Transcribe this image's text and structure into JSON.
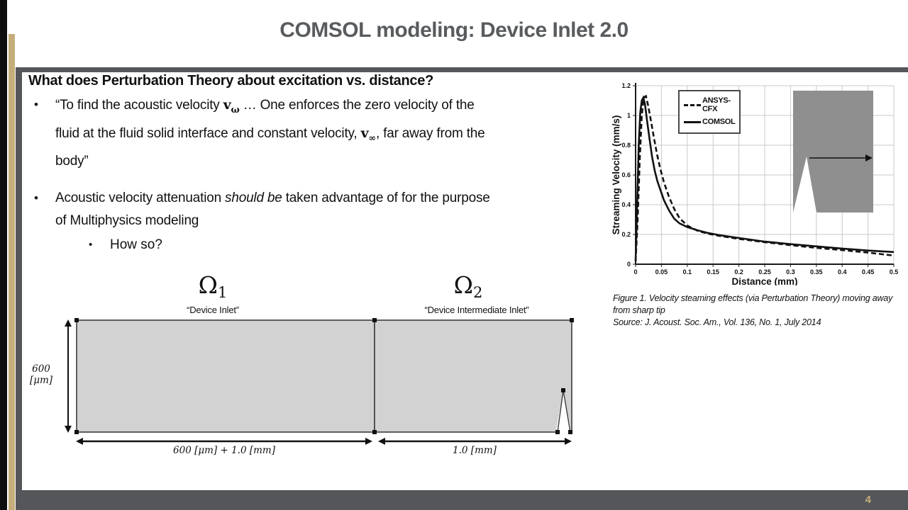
{
  "slide": {
    "title": "COMSOL modeling: Device Inlet 2.0",
    "page_number": "4",
    "colors": {
      "accent_gold": "#c5ae7a",
      "bar_gray": "#54565a",
      "title_gray": "#595c5e"
    }
  },
  "content": {
    "heading": "What does Perturbation Theory about excitation vs. distance?",
    "bullet1": {
      "seg0": "“To find the acoustic velocity ",
      "seg1": "v",
      "seg2": "ω",
      "seg3": " … One enforces the zero velocity of the fluid at the fluid solid interface and constant velocity, ",
      "seg4": "v",
      "seg5": "∞",
      "seg6": ", far away from the body”"
    },
    "bullet2": {
      "seg0": "Acoustic velocity attenuation ",
      "seg1": "should be",
      "seg2": " taken advantage of for the purpose of Multiphysics modeling"
    },
    "sub_bullet": "How so?"
  },
  "figure": {
    "caption_line1": "Figure 1.  Velocity steaming effects (via Perturbation Theory) moving away from sharp tip",
    "caption_line2": "Source: J. Acoust. Soc. Am., Vol. 136,  No. 1, July 2014"
  },
  "chart_data": {
    "type": "line",
    "title": "",
    "xlabel": "Distance (mm)",
    "ylabel": "Streaming Velocity (mm/s)",
    "xlim": [
      0,
      0.5
    ],
    "ylim": [
      0,
      1.2
    ],
    "xticks": [
      0,
      0.05,
      0.1,
      0.15,
      0.2,
      0.25,
      0.3,
      0.35,
      0.4,
      0.45,
      0.5
    ],
    "yticks": [
      0,
      0.2,
      0.4,
      0.6,
      0.8,
      1,
      1.2
    ],
    "grid": true,
    "legend_position": "upper-left",
    "annotation": "inset image of sharp tip with arrow indicating direction of increasing distance",
    "series": [
      {
        "name": "ANSYS-CFX",
        "style": "dashed",
        "x": [
          0,
          0.004,
          0.008,
          0.012,
          0.016,
          0.02,
          0.024,
          0.03,
          0.036,
          0.042,
          0.048,
          0.055,
          0.065,
          0.075,
          0.085,
          0.1,
          0.12,
          0.14,
          0.16,
          0.18,
          0.2,
          0.25,
          0.3,
          0.35,
          0.4,
          0.45,
          0.5
        ],
        "y": [
          0.02,
          0.3,
          0.7,
          1.0,
          1.12,
          1.13,
          1.07,
          0.96,
          0.84,
          0.73,
          0.64,
          0.55,
          0.45,
          0.37,
          0.31,
          0.26,
          0.225,
          0.205,
          0.192,
          0.181,
          0.17,
          0.148,
          0.128,
          0.11,
          0.095,
          0.078,
          0.058
        ]
      },
      {
        "name": "COMSOL",
        "style": "solid",
        "x": [
          0,
          0.003,
          0.006,
          0.009,
          0.012,
          0.015,
          0.018,
          0.022,
          0.027,
          0.032,
          0.037,
          0.042,
          0.047,
          0.055,
          0.065,
          0.075,
          0.085,
          0.1,
          0.12,
          0.14,
          0.16,
          0.18,
          0.2,
          0.25,
          0.3,
          0.35,
          0.4,
          0.45,
          0.5
        ],
        "y": [
          0.02,
          0.4,
          0.8,
          1.02,
          1.1,
          1.12,
          1.08,
          0.97,
          0.84,
          0.72,
          0.63,
          0.56,
          0.51,
          0.43,
          0.36,
          0.305,
          0.275,
          0.25,
          0.228,
          0.21,
          0.197,
          0.186,
          0.176,
          0.152,
          0.135,
          0.12,
          0.105,
          0.092,
          0.082
        ]
      }
    ]
  },
  "diagram": {
    "domain1": {
      "symbol": "Ω",
      "subscript": "1",
      "name": "“Device Inlet”"
    },
    "domain2": {
      "symbol": "Ω",
      "subscript": "2",
      "name": "“Device Intermediate Inlet”"
    },
    "height_label": "600 [μm]",
    "width1_label": "600 [μm] + 1.0 [mm]",
    "width2_label": "1.0 [mm]"
  }
}
